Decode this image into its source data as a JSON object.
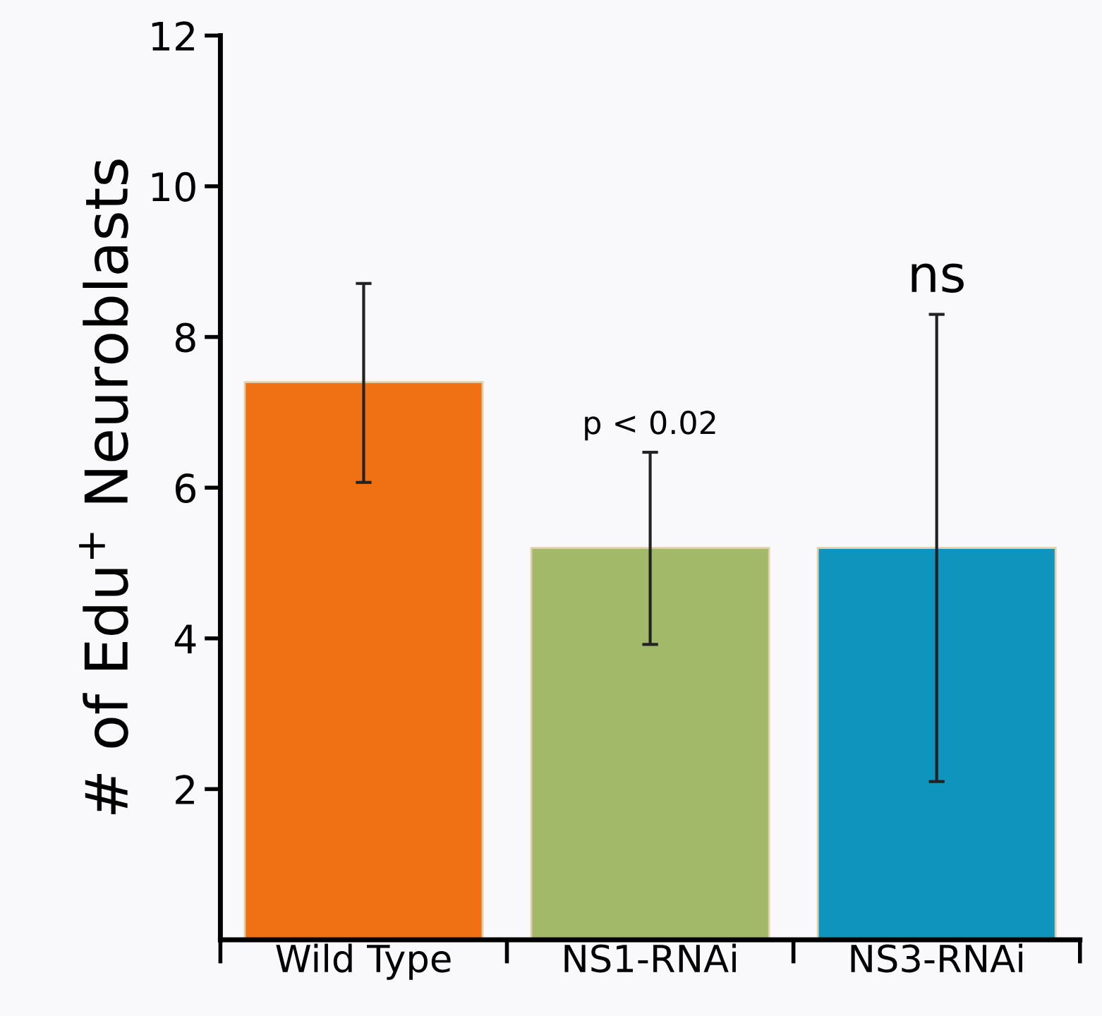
{
  "chart_data": {
    "type": "bar",
    "ylabel": "# of Edu$^{+}$ Neuroblasts",
    "categories": [
      "Wild Type",
      "NS1-RNAi",
      "NS3-RNAi"
    ],
    "values": [
      7.4,
      5.2,
      5.2
    ],
    "colors": [
      "#f07014",
      "#a2b96a",
      "#0f95bd"
    ],
    "errors": [
      [
        6.07,
        8.71
      ],
      [
        3.92,
        6.47
      ],
      [
        2.1,
        8.3
      ]
    ],
    "ylim": [
      0,
      12
    ],
    "yticks": [
      2,
      4,
      6,
      8,
      10,
      12
    ],
    "annotations": [
      "p < 0.02",
      "ns"
    ],
    "grid": false,
    "legend": false
  }
}
